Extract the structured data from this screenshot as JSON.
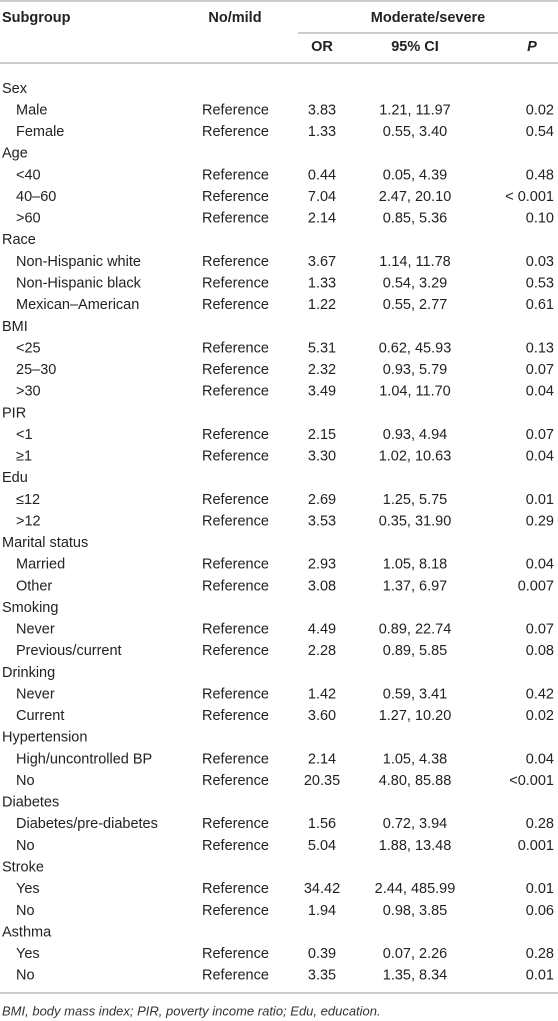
{
  "header": {
    "subgroup": "Subgroup",
    "no_mild": "No/mild",
    "moderate_severe": "Moderate/severe",
    "or": "OR",
    "ci": "95% CI",
    "p": "P"
  },
  "groups": [
    {
      "label": "Sex",
      "rows": [
        [
          "Male",
          "Reference",
          "3.83",
          "1.21, 11.97",
          "0.02"
        ],
        [
          "Female",
          "Reference",
          "1.33",
          "0.55, 3.40",
          "0.54"
        ]
      ]
    },
    {
      "label": "Age",
      "rows": [
        [
          "<40",
          "Reference",
          "0.44",
          "0.05, 4.39",
          "0.48"
        ],
        [
          "40–60",
          "Reference",
          "7.04",
          "2.47, 20.10",
          "< 0.001"
        ],
        [
          ">60",
          "Reference",
          "2.14",
          "0.85, 5.36",
          "0.10"
        ]
      ]
    },
    {
      "label": "Race",
      "rows": [
        [
          "Non-Hispanic white",
          "Reference",
          "3.67",
          "1.14, 11.78",
          "0.03"
        ],
        [
          "Non-Hispanic black",
          "Reference",
          "1.33",
          "0.54, 3.29",
          "0.53"
        ],
        [
          "Mexican–American",
          "Reference",
          "1.22",
          "0.55, 2.77",
          "0.61"
        ]
      ]
    },
    {
      "label": "BMI",
      "rows": [
        [
          "<25",
          "Reference",
          "5.31",
          "0.62, 45.93",
          "0.13"
        ],
        [
          "25–30",
          "Reference",
          "2.32",
          "0.93, 5.79",
          "0.07"
        ],
        [
          ">30",
          "Reference",
          "3.49",
          "1.04, 11.70",
          "0.04"
        ]
      ]
    },
    {
      "label": "PIR",
      "rows": [
        [
          "<1",
          "Reference",
          "2.15",
          "0.93, 4.94",
          "0.07"
        ],
        [
          "≥1",
          "Reference",
          "3.30",
          "1.02, 10.63",
          "0.04"
        ]
      ]
    },
    {
      "label": "Edu",
      "rows": [
        [
          "≤12",
          "Reference",
          "2.69",
          "1.25, 5.75",
          "0.01"
        ],
        [
          ">12",
          "Reference",
          "3.53",
          "0.35, 31.90",
          "0.29"
        ]
      ]
    },
    {
      "label": "Marital status",
      "rows": [
        [
          "Married",
          "Reference",
          "2.93",
          "1.05, 8.18",
          "0.04"
        ],
        [
          "Other",
          "Reference",
          "3.08",
          "1.37, 6.97",
          "0.007"
        ]
      ]
    },
    {
      "label": "Smoking",
      "rows": [
        [
          "Never",
          "Reference",
          "4.49",
          "0.89, 22.74",
          "0.07"
        ],
        [
          "Previous/current",
          "Reference",
          "2.28",
          "0.89, 5.85",
          "0.08"
        ]
      ]
    },
    {
      "label": "Drinking",
      "rows": [
        [
          "Never",
          "Reference",
          "1.42",
          "0.59, 3.41",
          "0.42"
        ],
        [
          "Current",
          "Reference",
          "3.60",
          "1.27, 10.20",
          "0.02"
        ]
      ]
    },
    {
      "label": "Hypertension",
      "rows": [
        [
          "High/uncontrolled BP",
          "Reference",
          "2.14",
          "1.05, 4.38",
          "0.04"
        ],
        [
          "No",
          "Reference",
          "20.35",
          "4.80, 85.88",
          "<0.001"
        ]
      ]
    },
    {
      "label": "Diabetes",
      "rows": [
        [
          "Diabetes/pre-diabetes",
          "Reference",
          "1.56",
          "0.72, 3.94",
          "0.28"
        ],
        [
          "No",
          "Reference",
          "5.04",
          "1.88, 13.48",
          "0.001"
        ]
      ]
    },
    {
      "label": "Stroke",
      "rows": [
        [
          "Yes",
          "Reference",
          "34.42",
          "2.44, 485.99",
          "0.01"
        ],
        [
          "No",
          "Reference",
          "1.94",
          "0.98, 3.85",
          "0.06"
        ]
      ]
    },
    {
      "label": "Asthma",
      "rows": [
        [
          "Yes",
          "Reference",
          "0.39",
          "0.07, 2.26",
          "0.28"
        ],
        [
          "No",
          "Reference",
          "3.35",
          "1.35, 8.34",
          "0.01"
        ]
      ]
    }
  ],
  "footnote": "BMI, body mass index; PIR, poverty income ratio; Edu, education."
}
